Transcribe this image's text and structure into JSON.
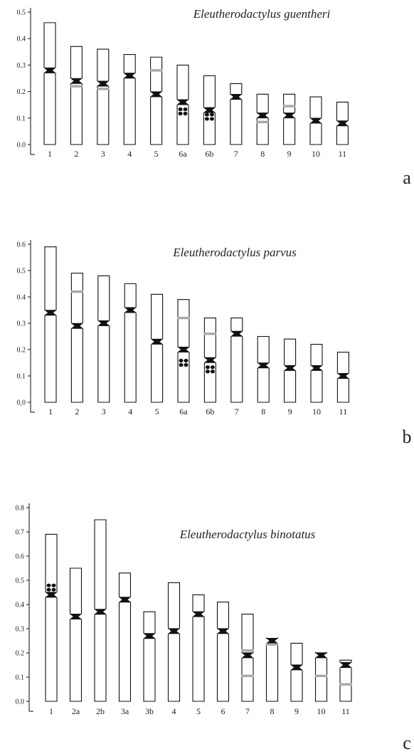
{
  "panels": [
    {
      "id": "a",
      "letter": "a",
      "species": "Eleutherodactylus guentheri",
      "yticks": [
        "0.0",
        "0.1",
        "0.2",
        "0.3",
        "0.4",
        "0.5"
      ],
      "ymax": 0.5,
      "chromosomes": [
        {
          "label": "1",
          "top": 0.46,
          "cen": 0.28,
          "gray": [],
          "dots": null
        },
        {
          "label": "2",
          "top": 0.37,
          "cen": 0.24,
          "gray": [
            0.22
          ],
          "dots": null
        },
        {
          "label": "3",
          "top": 0.36,
          "cen": 0.23,
          "gray": [
            0.21
          ],
          "dots": null
        },
        {
          "label": "4",
          "top": 0.34,
          "cen": 0.26,
          "gray": [],
          "dots": null
        },
        {
          "label": "5",
          "top": 0.33,
          "cen": 0.19,
          "gray": [
            0.28
          ],
          "dots": null
        },
        {
          "label": "6a",
          "top": 0.3,
          "cen": 0.16,
          "gray": [],
          "dots": 0.125
        },
        {
          "label": "6b",
          "top": 0.26,
          "cen": 0.13,
          "gray": [],
          "dots": 0.105
        },
        {
          "label": "7",
          "top": 0.23,
          "cen": 0.18,
          "gray": [],
          "dots": null
        },
        {
          "label": "8",
          "top": 0.19,
          "cen": 0.11,
          "gray": [
            0.085
          ],
          "dots": null
        },
        {
          "label": "9",
          "top": 0.19,
          "cen": 0.11,
          "gray": [
            0.145
          ],
          "dots": null
        },
        {
          "label": "10",
          "top": 0.18,
          "cen": 0.09,
          "gray": [],
          "dots": null
        },
        {
          "label": "11",
          "top": 0.16,
          "cen": 0.08,
          "gray": [],
          "dots": null
        }
      ]
    },
    {
      "id": "b",
      "letter": "b",
      "species": "Eleutherodactylus parvus",
      "yticks": [
        "0,0",
        "0.1",
        "0.2",
        "0.3",
        "0.4",
        "0.5",
        "0.6"
      ],
      "ymax": 0.6,
      "chromosomes": [
        {
          "label": "1",
          "top": 0.59,
          "cen": 0.34,
          "gray": [],
          "dots": null
        },
        {
          "label": "2",
          "top": 0.49,
          "cen": 0.29,
          "gray": [
            0.42
          ],
          "dots": null
        },
        {
          "label": "3",
          "top": 0.48,
          "cen": 0.3,
          "gray": [],
          "dots": null
        },
        {
          "label": "4",
          "top": 0.45,
          "cen": 0.35,
          "gray": [],
          "dots": null
        },
        {
          "label": "5",
          "top": 0.41,
          "cen": 0.23,
          "gray": [],
          "dots": null
        },
        {
          "label": "6a",
          "top": 0.39,
          "cen": 0.2,
          "gray": [
            0.32
          ],
          "dots": 0.15
        },
        {
          "label": "6b",
          "top": 0.32,
          "cen": 0.16,
          "gray": [
            0.26
          ],
          "dots": 0.125
        },
        {
          "label": "7",
          "top": 0.32,
          "cen": 0.26,
          "gray": [],
          "dots": null
        },
        {
          "label": "8",
          "top": 0.25,
          "cen": 0.14,
          "gray": [],
          "dots": null
        },
        {
          "label": "9",
          "top": 0.24,
          "cen": 0.13,
          "gray": [],
          "dots": null
        },
        {
          "label": "10",
          "top": 0.22,
          "cen": 0.13,
          "gray": [],
          "dots": null
        },
        {
          "label": "11",
          "top": 0.19,
          "cen": 0.1,
          "gray": [],
          "dots": null
        }
      ]
    },
    {
      "id": "c",
      "letter": "c",
      "species": "Eleutherodactylus binotatus",
      "yticks": [
        "0.0",
        "0.1",
        "0.2",
        "0.3",
        "0.4",
        "0.5",
        "0.6",
        "0.7",
        "0.8"
      ],
      "ymax": 0.8,
      "chromosomes": [
        {
          "label": "1",
          "top": 0.69,
          "cen": 0.44,
          "gray": [],
          "dots": 0.47
        },
        {
          "label": "2a",
          "top": 0.55,
          "cen": 0.35,
          "gray": [],
          "dots": null
        },
        {
          "label": "2b",
          "top": 0.75,
          "cen": 0.37,
          "gray": [],
          "dots": null
        },
        {
          "label": "3a",
          "top": 0.53,
          "cen": 0.42,
          "gray": [],
          "dots": null
        },
        {
          "label": "3b",
          "top": 0.37,
          "cen": 0.27,
          "gray": [],
          "dots": null
        },
        {
          "label": "4",
          "top": 0.49,
          "cen": 0.29,
          "gray": [],
          "dots": null
        },
        {
          "label": "5",
          "top": 0.44,
          "cen": 0.36,
          "gray": [],
          "dots": null
        },
        {
          "label": "6",
          "top": 0.41,
          "cen": 0.29,
          "gray": [],
          "dots": null
        },
        {
          "label": "7",
          "top": 0.36,
          "cen": 0.19,
          "gray": [
            0.21,
            0.105
          ],
          "dots": null
        },
        {
          "label": "8",
          "top": 0.26,
          "cen": 0.25,
          "gray": [
            0.235
          ],
          "dots": null
        },
        {
          "label": "9",
          "top": 0.24,
          "cen": 0.14,
          "gray": [],
          "dots": null
        },
        {
          "label": "10",
          "top": 0.2,
          "cen": 0.19,
          "gray": [
            0.105
          ],
          "dots": null
        },
        {
          "label": "11",
          "top": 0.17,
          "cen": 0.15,
          "gray": [
            0.07
          ],
          "dots": null
        }
      ]
    }
  ]
}
